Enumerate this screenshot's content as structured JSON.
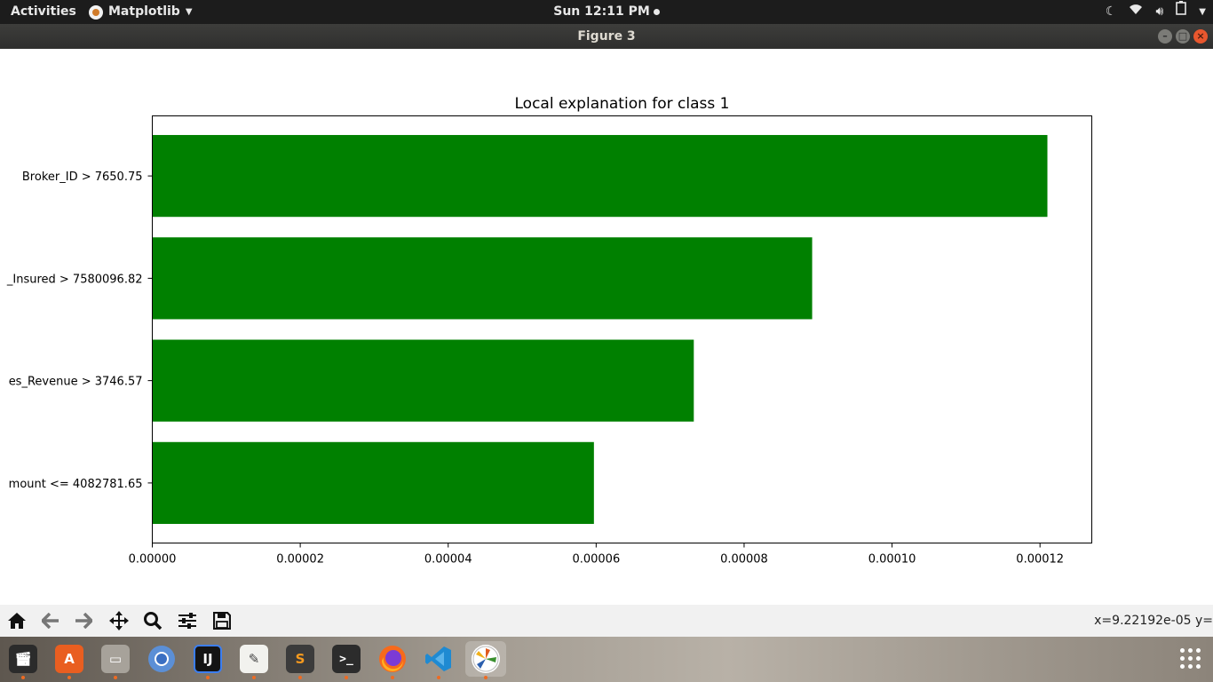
{
  "topbar": {
    "activities": "Activities",
    "app_name": "Matplotlib",
    "clock": "Sun 12:11 PM"
  },
  "window": {
    "title": "Figure 3"
  },
  "chart_data": {
    "type": "bar",
    "orientation": "horizontal",
    "title": "Local explanation for class 1",
    "categories": [
      "Broker_ID > 7650.75",
      "_Insured > 7580096.82",
      "es_Revenue > 3746.57",
      "mount <= 4082781.65"
    ],
    "values": [
      0.000121,
      8.92e-05,
      7.32e-05,
      5.97e-05
    ],
    "xlim": [
      0,
      0.000127
    ],
    "xticks": [
      "0.00000",
      "0.00002",
      "0.00004",
      "0.00006",
      "0.00008",
      "0.00010",
      "0.00012"
    ],
    "xtick_values": [
      0,
      2e-05,
      4e-05,
      6e-05,
      8e-05,
      0.0001,
      0.00012
    ],
    "bar_color": "#008000",
    "grid": false
  },
  "toolbar": {
    "tools": [
      "home-icon",
      "back-icon",
      "forward-icon",
      "pan-icon",
      "zoom-icon",
      "configure-subplots-icon",
      "save-icon"
    ],
    "coords": "x=9.22192e-05  y="
  },
  "dock": {
    "apps": [
      "video-editor",
      "software-center",
      "file-manager",
      "chromium",
      "intellij",
      "text-editor",
      "sublime-text",
      "terminal",
      "firefox",
      "vscode",
      "matplotlib"
    ]
  }
}
